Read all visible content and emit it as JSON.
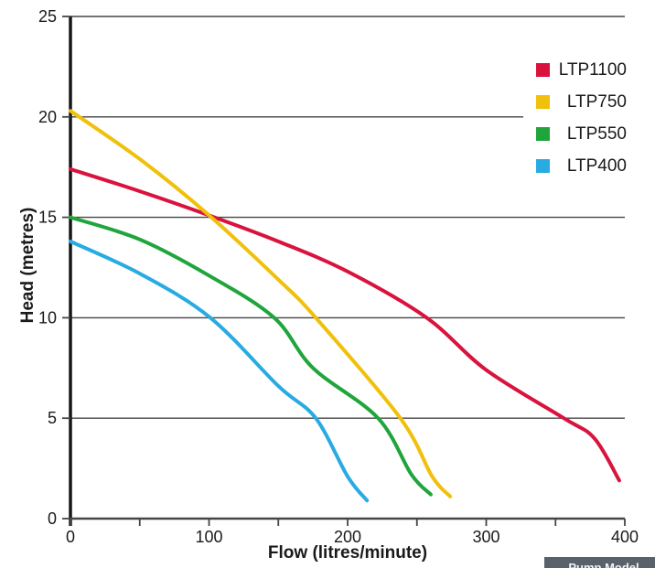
{
  "chart_data": {
    "type": "line",
    "title": "",
    "xlabel": "Flow (litres/minute)",
    "ylabel": "Head (metres)",
    "xlim": [
      0,
      400
    ],
    "ylim": [
      0,
      25
    ],
    "x_major_ticks": [
      0,
      100,
      200,
      300,
      400
    ],
    "x_minor_ticks": [
      50,
      150,
      250,
      350
    ],
    "y_ticks": [
      0,
      5,
      10,
      15,
      20,
      25
    ],
    "grid": "horizontal",
    "legend_position": "top-right",
    "legend_entries": [
      "LTP1100",
      "LTP750",
      "LTP550",
      "LTP400"
    ],
    "series": [
      {
        "name": "LTP1100",
        "color": "#d9133d",
        "points": [
          [
            0,
            17.4
          ],
          [
            50,
            16.3
          ],
          [
            100,
            15.1
          ],
          [
            150,
            13.8
          ],
          [
            200,
            12.3
          ],
          [
            257,
            10
          ],
          [
            300,
            7.4
          ],
          [
            356,
            5
          ],
          [
            378,
            4.0
          ],
          [
            396,
            1.9
          ]
        ]
      },
      {
        "name": "LTP750",
        "color": "#f0c00a",
        "points": [
          [
            0,
            20.3
          ],
          [
            50,
            17.9
          ],
          [
            100,
            15.1
          ],
          [
            150,
            11.9
          ],
          [
            177,
            10
          ],
          [
            238,
            5
          ],
          [
            261,
            2.1
          ],
          [
            274,
            1.1
          ]
        ]
      },
      {
        "name": "LTP550",
        "color": "#1fa53c",
        "points": [
          [
            0,
            15.0
          ],
          [
            50,
            13.9
          ],
          [
            100,
            12.1
          ],
          [
            147,
            10
          ],
          [
            175,
            7.5
          ],
          [
            222,
            5
          ],
          [
            246,
            2.2
          ],
          [
            260,
            1.2
          ]
        ]
      },
      {
        "name": "LTP400",
        "color": "#29abe2",
        "points": [
          [
            0,
            13.8
          ],
          [
            50,
            12.2
          ],
          [
            101,
            10
          ],
          [
            150,
            6.6
          ],
          [
            177,
            5
          ],
          [
            200,
            2.1
          ],
          [
            214,
            0.9
          ]
        ]
      }
    ],
    "style": {
      "gridline_color": "#454545",
      "x_axis_color": "#454545",
      "y_axis_color": "#161616",
      "tick_color": "#454545",
      "curve_width": 4
    }
  },
  "badge": {
    "label": "Pump Model",
    "background": "#59616a"
  }
}
